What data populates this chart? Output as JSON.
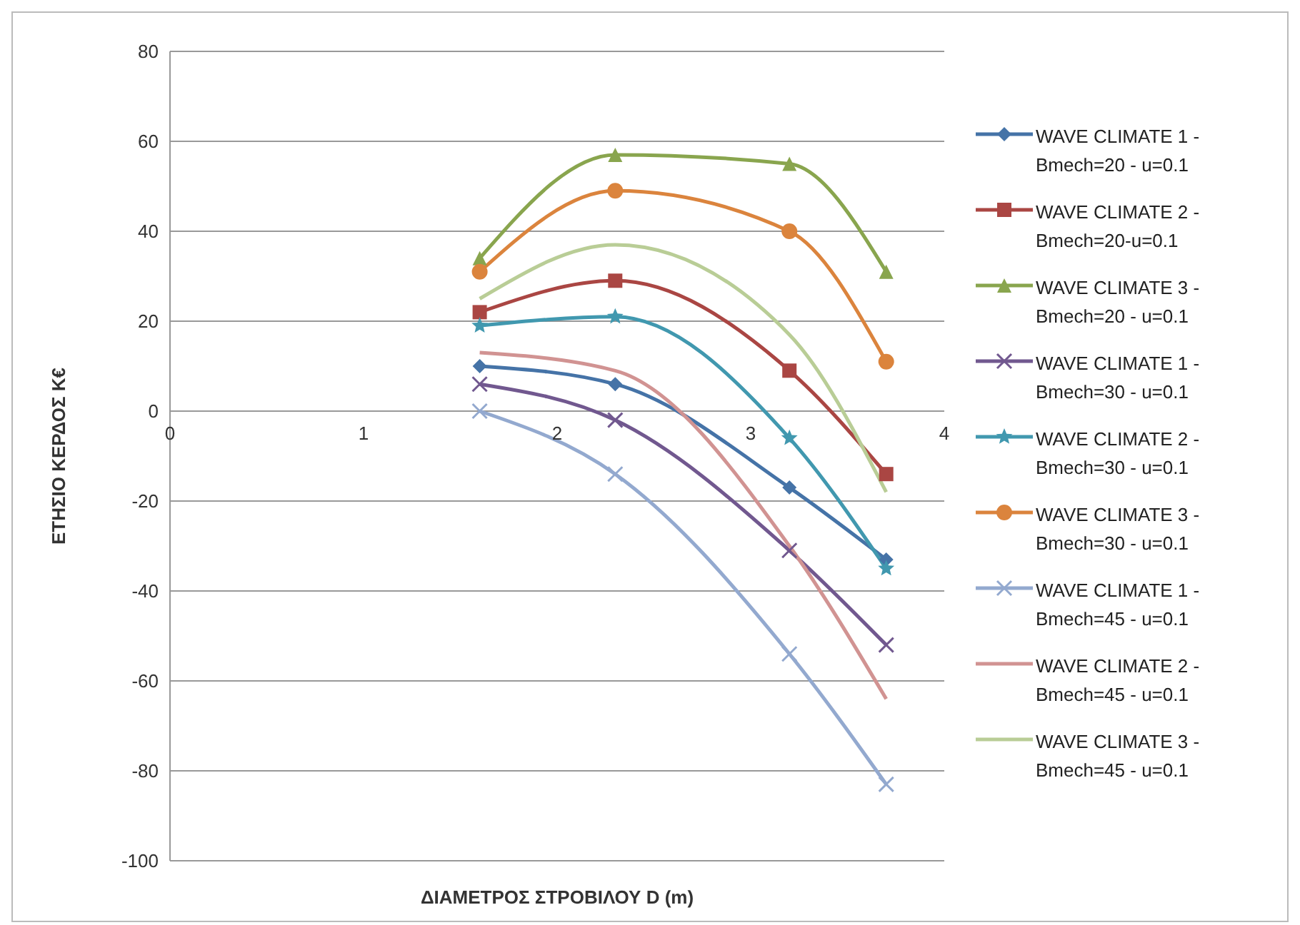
{
  "chart_data": {
    "type": "line",
    "xlabel": "ΔΙΑΜΕΤΡΟΣ ΣΤΡΟΒΙΛΟΥ D (m)",
    "ylabel": "ΕΤΗΣΙΟ ΚΕΡΔΟΣ K€",
    "x": [
      1.6,
      2.3,
      3.2,
      3.7
    ],
    "xlim": [
      0,
      4
    ],
    "xticks": [
      0,
      1,
      2,
      3,
      4
    ],
    "ylim": [
      -100,
      80
    ],
    "yticks": [
      -100,
      -80,
      -60,
      -40,
      -20,
      0,
      20,
      40,
      60,
      80
    ],
    "grid": "y",
    "legend": "right",
    "series": [
      {
        "name": "WAVE CLIMATE 1 - Bmech=20 - u=0.1",
        "color": "#4573a7",
        "marker": "diamond",
        "values": [
          10,
          6,
          -17,
          -33
        ]
      },
      {
        "name": "WAVE CLIMATE 2 - Bmech=20-u=0.1",
        "color": "#aa4643",
        "marker": "square",
        "values": [
          22,
          29,
          9,
          -14
        ]
      },
      {
        "name": "WAVE CLIMATE 3 - Bmech=20 - u=0.1",
        "color": "#89a54e",
        "marker": "triangle",
        "values": [
          34,
          57,
          55,
          31
        ]
      },
      {
        "name": "WAVE CLIMATE 1 - Bmech=30 - u=0.1",
        "color": "#71588f",
        "marker": "cross",
        "values": [
          6,
          -2,
          -31,
          -52
        ]
      },
      {
        "name": "WAVE CLIMATE 2 - Bmech=30 - u=0.1",
        "color": "#4198af",
        "marker": "star",
        "values": [
          19,
          21,
          -6,
          -35
        ]
      },
      {
        "name": "WAVE CLIMATE 3 - Bmech=30 - u=0.1",
        "color": "#db843d",
        "marker": "circle",
        "values": [
          31,
          49,
          40,
          11
        ]
      },
      {
        "name": "WAVE CLIMATE 1 - Bmech=45 - u=0.1",
        "color": "#93a9cf",
        "marker": "cross",
        "values": [
          0,
          -14,
          -54,
          -83
        ]
      },
      {
        "name": "WAVE CLIMATE 2 - Bmech=45 - u=0.1",
        "color": "#d19392",
        "marker": "none",
        "values": [
          13,
          9,
          -30,
          -64
        ]
      },
      {
        "name": "WAVE CLIMATE 3 - Bmech=45 - u=0.1",
        "color": "#b9cd96",
        "marker": "none",
        "values": [
          25,
          37,
          17,
          -18
        ]
      }
    ]
  }
}
